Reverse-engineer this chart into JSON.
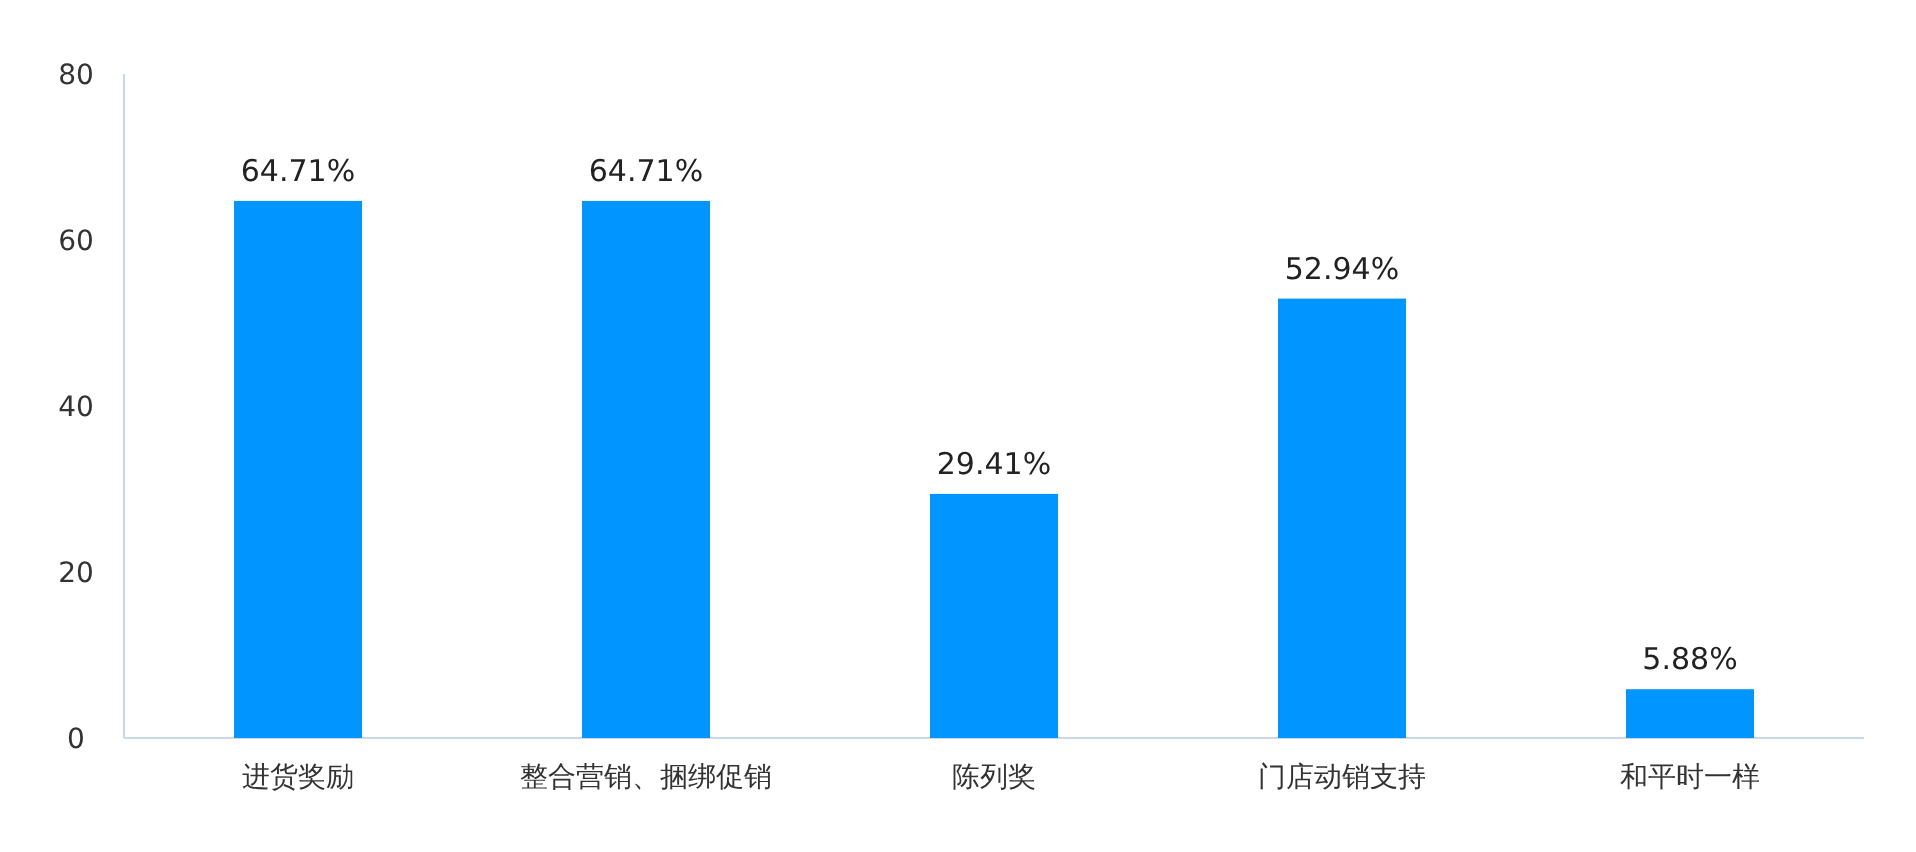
{
  "chart_data": {
    "type": "bar",
    "categories": [
      "进货奖励",
      "整合营销、捆绑促销",
      "陈列奖",
      "门店动销支持",
      "和平时一样"
    ],
    "values": [
      64.71,
      64.71,
      29.41,
      52.94,
      5.88
    ],
    "value_labels": [
      "64.71%",
      "64.71%",
      "29.41%",
      "52.94%",
      "5.88%"
    ],
    "color": "#0095ff",
    "ylim": [
      0,
      80
    ],
    "yticks": [
      0,
      20,
      40,
      60,
      80
    ],
    "grid": false
  }
}
